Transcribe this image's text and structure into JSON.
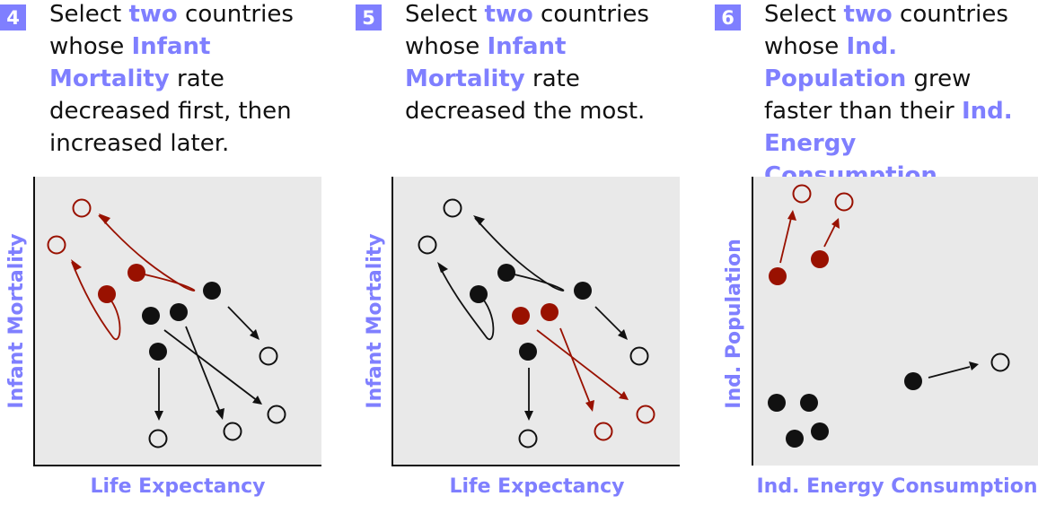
{
  "colors": {
    "accent": "#7f7fff",
    "red": "#991100",
    "dark": "#111111",
    "plot_bg": "#e9e9e9"
  },
  "panels": [
    {
      "number": "4",
      "prompt": [
        {
          "t": "Select "
        },
        {
          "t": "two",
          "hl": true
        },
        {
          "t": " countries whose "
        },
        {
          "t": "Infant Mortality",
          "hl": true
        },
        {
          "t": " rate decreased first, then increased later."
        }
      ],
      "xlabel": "Life Expectancy",
      "ylabel": "Infant Mortality"
    },
    {
      "number": "5",
      "prompt": [
        {
          "t": "Select "
        },
        {
          "t": "two",
          "hl": true
        },
        {
          "t": " countries whose "
        },
        {
          "t": "Infant Mortality",
          "hl": true
        },
        {
          "t": " rate decreased the most."
        }
      ],
      "xlabel": "Life Expectancy",
      "ylabel": "Infant Mortality"
    },
    {
      "number": "6",
      "prompt": [
        {
          "t": "Select "
        },
        {
          "t": "two",
          "hl": true
        },
        {
          "t": " countries whose "
        },
        {
          "t": "Ind. Population",
          "hl": true
        },
        {
          "t": " grew faster than their "
        },
        {
          "t": "Ind. Energy Consumption",
          "hl": true
        },
        {
          "t": "."
        }
      ],
      "xlabel": "Ind. Energy Consumption",
      "ylabel": "Ind. Population"
    }
  ]
}
